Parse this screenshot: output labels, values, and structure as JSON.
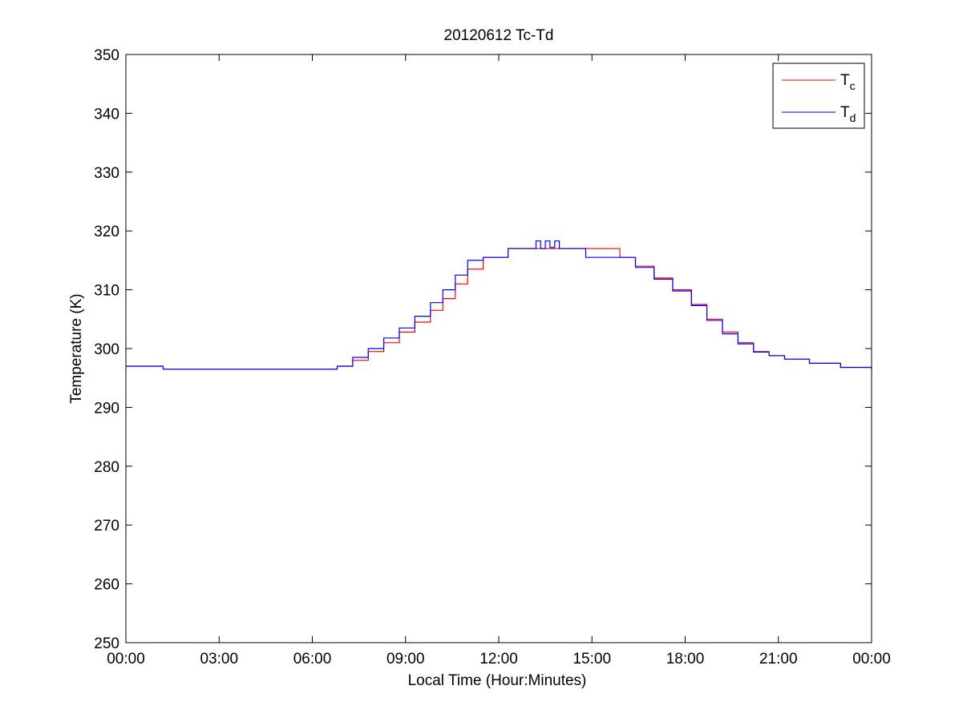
{
  "chart_data": {
    "type": "line",
    "title": "20120612 Tc-Td",
    "xlabel": "Local Time (Hour:Minutes)",
    "ylabel": "Temperature (K)",
    "xlim": [
      0,
      24
    ],
    "ylim": [
      250,
      350
    ],
    "x_ticks": [
      0,
      3,
      6,
      9,
      12,
      15,
      18,
      21,
      24
    ],
    "x_tick_labels": [
      "00:00",
      "03:00",
      "06:00",
      "09:00",
      "12:00",
      "15:00",
      "18:00",
      "21:00",
      "00:00"
    ],
    "y_ticks": [
      250,
      260,
      270,
      280,
      290,
      300,
      310,
      320,
      330,
      340,
      350
    ],
    "y_tick_labels": [
      "250",
      "260",
      "270",
      "280",
      "290",
      "300",
      "310",
      "320",
      "330",
      "340",
      "350"
    ],
    "grid": false,
    "legend_position": "top-right",
    "series": [
      {
        "name": "Tc",
        "legend_main": "T",
        "legend_sub": "c",
        "color": "#ff0000",
        "x": [
          0,
          1.2,
          6.4,
          6.8,
          7.3,
          7.8,
          8.3,
          8.8,
          9.3,
          9.8,
          10.2,
          10.6,
          11.0,
          11.5,
          12.3,
          12.7,
          14.8,
          15.9,
          16.4,
          17.0,
          17.6,
          18.2,
          18.7,
          19.2,
          19.7,
          20.2,
          20.7,
          21.2,
          22.0,
          23.0,
          24.0
        ],
        "y": [
          297.0,
          296.5,
          296.5,
          297.0,
          298.0,
          299.5,
          301.0,
          302.8,
          304.5,
          306.5,
          308.5,
          311.0,
          313.5,
          315.5,
          317.0,
          317.0,
          317.0,
          315.5,
          314.0,
          312.0,
          310.0,
          307.5,
          305.0,
          302.8,
          301.0,
          299.5,
          298.8,
          298.2,
          297.5,
          296.8,
          296.5
        ]
      },
      {
        "name": "Td",
        "legend_main": "T",
        "legend_sub": "d",
        "color": "#0000ff",
        "x": [
          0,
          1.2,
          6.4,
          6.8,
          7.3,
          7.8,
          8.3,
          8.8,
          9.3,
          9.8,
          10.2,
          10.6,
          11.0,
          11.5,
          12.3,
          12.7,
          13.2,
          13.35,
          13.5,
          13.65,
          13.8,
          13.95,
          14.1,
          14.8,
          15.9,
          16.4,
          17.0,
          17.6,
          18.2,
          18.7,
          19.2,
          19.7,
          20.2,
          20.7,
          21.2,
          22.0,
          23.0,
          24.0
        ],
        "y": [
          297.0,
          296.5,
          296.5,
          297.0,
          298.5,
          300.0,
          301.8,
          303.5,
          305.5,
          307.8,
          310.0,
          312.5,
          315.0,
          315.5,
          317.0,
          317.0,
          318.3,
          317.0,
          318.3,
          317.2,
          318.3,
          317.0,
          317.0,
          315.5,
          315.5,
          313.8,
          311.8,
          309.8,
          307.3,
          304.8,
          302.5,
          300.8,
          299.4,
          298.8,
          298.2,
          297.5,
          296.8,
          296.5
        ]
      }
    ]
  }
}
